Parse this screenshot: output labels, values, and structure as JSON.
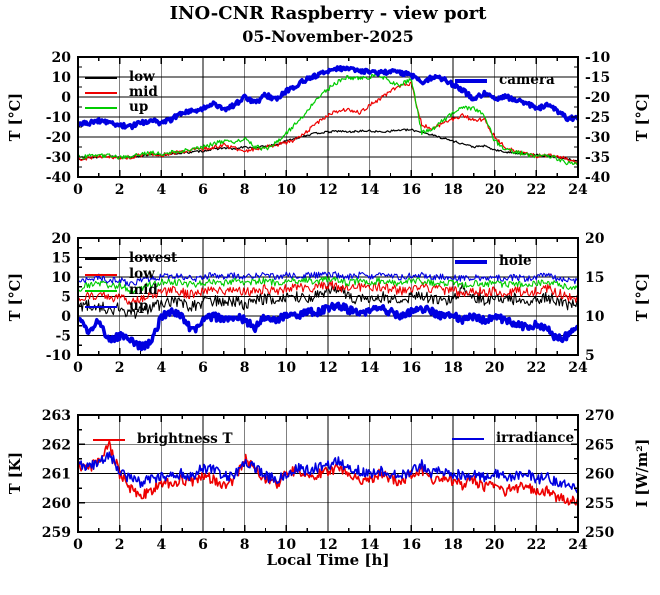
{
  "title": "INO-CNR Raspberry - view port",
  "subtitle": "05-November-2025",
  "xlabel": "Local Time [h]",
  "colors": {
    "black": "#000000",
    "red": "#ee0000",
    "green": "#00cc00",
    "blue": "#0000e0",
    "grid": "#000000",
    "background": "#ffffff"
  },
  "chart_data": [
    {
      "type": "line",
      "panel": "viewport-temperatures",
      "xlim": [
        0,
        24
      ],
      "xticks": [
        0,
        2,
        4,
        6,
        8,
        10,
        12,
        14,
        16,
        18,
        20,
        22,
        24
      ],
      "xminor_step": 1,
      "grid": true,
      "ylabel_left": "T [°C]",
      "ylabel_right": "T [°C]",
      "ylim_left": [
        -40,
        20
      ],
      "yticks_left": [
        20,
        10,
        0,
        -10,
        -20,
        -30,
        -40
      ],
      "ylim_right": [
        -40,
        -10
      ],
      "yticks_right": [
        -10,
        -15,
        -20,
        -25,
        -30,
        -35,
        -40
      ],
      "x_step": 0.5,
      "series": [
        {
          "name": "low",
          "color": "#000000",
          "axis": "left",
          "width": 1.2,
          "noise": 0.5,
          "y": [
            -31,
            -30.5,
            -30,
            -29.5,
            -30,
            -30,
            -29.5,
            -29,
            -29,
            -28.5,
            -28,
            -27.5,
            -27,
            -26,
            -25.5,
            -26,
            -25,
            -25.5,
            -24.5,
            -24,
            -22,
            -20.5,
            -19,
            -18,
            -17.5,
            -17,
            -17.5,
            -17,
            -17,
            -17.5,
            -17,
            -16.5,
            -16.5,
            -17.5,
            -19,
            -20.5,
            -22,
            -23.5,
            -25,
            -24.5,
            -26.5,
            -27.5,
            -28,
            -28.5,
            -29,
            -29.5,
            -30,
            -31,
            -32
          ]
        },
        {
          "name": "mid",
          "color": "#ee0000",
          "axis": "left",
          "width": 1.2,
          "noise": 1.0,
          "y": [
            -31,
            -30.5,
            -30,
            -30,
            -30.5,
            -30,
            -29,
            -28.5,
            -29,
            -28,
            -27.5,
            -26.5,
            -26,
            -25,
            -24,
            -25.5,
            -27,
            -26,
            -25,
            -24,
            -23,
            -21,
            -17,
            -13,
            -9,
            -7,
            -6,
            -8,
            -4,
            -1,
            3,
            6,
            7,
            -14,
            -16,
            -13,
            -11,
            -9,
            -12,
            -11,
            -20,
            -25,
            -27,
            -28,
            -29.5,
            -29,
            -30,
            -31,
            -33
          ]
        },
        {
          "name": "up",
          "color": "#00cc00",
          "axis": "left",
          "width": 1.2,
          "noise": 1.1,
          "y": [
            -30,
            -29.5,
            -29,
            -29.5,
            -30,
            -29.5,
            -29,
            -28,
            -28.5,
            -27.5,
            -27,
            -26,
            -25,
            -23.5,
            -22,
            -23,
            -21,
            -25,
            -26,
            -23,
            -18,
            -13,
            -7,
            -1,
            4,
            8,
            10,
            9,
            10,
            11,
            7,
            6,
            9,
            -18,
            -16,
            -12,
            -8,
            -5,
            -6,
            -9,
            -22,
            -26,
            -27.5,
            -28.5,
            -30,
            -29,
            -31,
            -33,
            -34
          ]
        },
        {
          "name": "camera",
          "color": "#0000e0",
          "axis": "right",
          "width": 3.5,
          "noise": 0.6,
          "y": [
            -27,
            -26.5,
            -26,
            -26.5,
            -27,
            -27.5,
            -26.5,
            -26,
            -26.5,
            -25.5,
            -24,
            -23.5,
            -23,
            -21.5,
            -23,
            -22,
            -20,
            -21.5,
            -19.5,
            -20.5,
            -18.5,
            -17,
            -15.5,
            -14.5,
            -13.5,
            -13,
            -13,
            -13.5,
            -13.5,
            -14,
            -13.5,
            -14,
            -14.5,
            -16.5,
            -15,
            -15.5,
            -17,
            -18.5,
            -20.5,
            -19,
            -20.5,
            -20,
            -20.5,
            -21.5,
            -23,
            -22,
            -23.5,
            -25.5,
            -25
          ]
        }
      ]
    },
    {
      "type": "line",
      "panel": "inner-temperatures",
      "xlim": [
        0,
        24
      ],
      "xticks": [
        0,
        2,
        4,
        6,
        8,
        10,
        12,
        14,
        16,
        18,
        20,
        22,
        24
      ],
      "xminor_step": 1,
      "grid": true,
      "ylabel_left": "T [°C]",
      "ylabel_right": "T [°C]",
      "ylim_left": [
        -10,
        20
      ],
      "yticks_left": [
        20,
        15,
        10,
        5,
        0,
        -5,
        -10
      ],
      "ylim_right": [
        5,
        20
      ],
      "yticks_right": [
        20,
        15,
        10,
        5
      ],
      "x_step": 0.5,
      "series": [
        {
          "name": "lowest",
          "color": "#000000",
          "axis": "left",
          "width": 1.1,
          "noise": 1.5,
          "y": [
            2,
            3,
            2.5,
            1.5,
            2,
            0.5,
            1,
            2,
            3,
            3.5,
            3,
            2.5,
            3.5,
            4,
            3.5,
            4,
            3,
            4,
            4.5,
            4,
            4.5,
            5,
            4.5,
            5,
            6,
            7.5,
            5,
            4,
            4.5,
            5,
            4.5,
            4,
            5,
            5.5,
            4.5,
            4,
            4.5,
            7.5,
            5,
            4,
            4.5,
            4,
            4.5,
            4,
            4.5,
            5,
            4,
            3,
            2.5
          ]
        },
        {
          "name": "low",
          "color": "#ee0000",
          "axis": "left",
          "width": 1.1,
          "noise": 1.2,
          "y": [
            4,
            5,
            5.5,
            4.5,
            5,
            3.5,
            4,
            5.5,
            6,
            6.5,
            6,
            5.5,
            6.5,
            7,
            6.5,
            7,
            6,
            6.5,
            7,
            6.5,
            7,
            7.5,
            7,
            7.5,
            8,
            7.5,
            7,
            7.5,
            7,
            7.5,
            7,
            6.5,
            7,
            7.5,
            7,
            6.5,
            6.5,
            6,
            6.5,
            6,
            6.5,
            6,
            6.5,
            6,
            6.5,
            7,
            6,
            5,
            4.5
          ]
        },
        {
          "name": "mid",
          "color": "#00cc00",
          "axis": "left",
          "width": 1.1,
          "noise": 0.9,
          "y": [
            7,
            8,
            8.5,
            7.5,
            8,
            6.5,
            7,
            8,
            8.5,
            9,
            8.5,
            8,
            8.5,
            9,
            8.5,
            9,
            8.5,
            9,
            9,
            8.5,
            9,
            9,
            9,
            9,
            9.5,
            9,
            8.5,
            9,
            8.5,
            9,
            8.5,
            8.5,
            9,
            9,
            8.5,
            8.5,
            8.5,
            8,
            8.5,
            8,
            8.5,
            8,
            8.5,
            8,
            8.5,
            9,
            8,
            7.5,
            7.5
          ]
        },
        {
          "name": "up",
          "color": "#0000e0",
          "axis": "left",
          "width": 1.1,
          "noise": 0.8,
          "y": [
            8.5,
            9.5,
            10,
            9,
            9.5,
            8,
            9,
            9.5,
            10,
            10.5,
            10,
            9.5,
            10,
            10.5,
            10,
            10.5,
            10,
            10.5,
            10.5,
            10,
            10.5,
            10.5,
            10.5,
            10.5,
            11,
            10.5,
            10,
            10.5,
            10,
            10.5,
            10,
            10,
            10.5,
            10.5,
            10,
            10,
            10,
            9.5,
            10,
            9.5,
            10,
            9.5,
            10,
            9.5,
            10,
            10.5,
            9.5,
            9,
            9
          ]
        },
        {
          "name": "hole",
          "color": "#0000e0",
          "axis": "right",
          "width": 3.5,
          "noise": 0.5,
          "y": [
            10,
            8,
            9.5,
            6.8,
            7.5,
            7,
            6,
            6.5,
            10,
            10.5,
            10,
            8,
            9.5,
            10,
            9.5,
            10,
            9.5,
            8.5,
            10,
            9.5,
            10,
            10,
            10.5,
            10.5,
            11,
            11.3,
            10.8,
            10.5,
            10.5,
            11,
            10.5,
            10,
            10.5,
            11,
            10.5,
            10,
            10,
            9.5,
            10,
            9.5,
            10,
            9.5,
            9,
            8.5,
            9,
            8.5,
            7,
            7.5,
            8.5
          ]
        }
      ]
    },
    {
      "type": "line",
      "panel": "sky-brightness-irradiance",
      "xlim": [
        0,
        24
      ],
      "xticks": [
        0,
        2,
        4,
        6,
        8,
        10,
        12,
        14,
        16,
        18,
        20,
        22,
        24
      ],
      "xminor_step": 1,
      "grid": true,
      "ylabel_left": "T [K]",
      "ylabel_right": "I [W/m²]",
      "ylim_left": [
        259,
        263
      ],
      "yticks_left": [
        263,
        262,
        261,
        260,
        259
      ],
      "ylim_right": [
        250,
        270
      ],
      "yticks_right": [
        270,
        265,
        260,
        255,
        250
      ],
      "x_step": 0.5,
      "series": [
        {
          "name": "brightness T",
          "color": "#ee0000",
          "axis": "left",
          "width": 1.6,
          "noise": 0.18,
          "y": [
            261.3,
            261.1,
            261.5,
            262.0,
            261.0,
            260.5,
            260.2,
            260.4,
            260.7,
            260.6,
            260.8,
            260.7,
            260.9,
            260.8,
            260.6,
            260.8,
            261.5,
            261.2,
            260.8,
            260.6,
            261.0,
            261.1,
            260.8,
            261.0,
            261.1,
            261.2,
            260.9,
            260.8,
            260.8,
            261.0,
            260.8,
            260.7,
            261.0,
            261.1,
            260.8,
            260.9,
            260.7,
            260.6,
            260.8,
            260.5,
            260.6,
            260.4,
            260.5,
            260.6,
            260.3,
            260.4,
            260.2,
            260.1,
            260.0
          ]
        },
        {
          "name": "irradiance",
          "color": "#0000e0",
          "axis": "right",
          "width": 1.6,
          "noise": 0.9,
          "y": [
            261.5,
            261.0,
            262.0,
            263.5,
            260.5,
            259.0,
            258.5,
            259.0,
            259.5,
            259.5,
            260.0,
            259.5,
            261.0,
            260.5,
            259.5,
            259.5,
            262.0,
            261.0,
            259.5,
            259.0,
            260.0,
            261.0,
            260.5,
            261.0,
            261.5,
            262.0,
            260.5,
            260.5,
            260.0,
            260.5,
            260.0,
            259.5,
            260.5,
            261.5,
            260.0,
            260.5,
            260.0,
            259.5,
            260.0,
            259.5,
            260.0,
            259.5,
            259.5,
            260.0,
            259.0,
            259.5,
            258.5,
            258.0,
            257.5
          ]
        }
      ]
    }
  ],
  "legends": {
    "c1_left": [
      "low",
      "mid",
      "up"
    ],
    "c1_right": [
      "camera"
    ],
    "c2_left": [
      "lowest",
      "low",
      "mid",
      "up"
    ],
    "c2_right": [
      "hole"
    ],
    "c3_left": [
      "brightness T"
    ],
    "c3_right": [
      "irradiance"
    ]
  }
}
